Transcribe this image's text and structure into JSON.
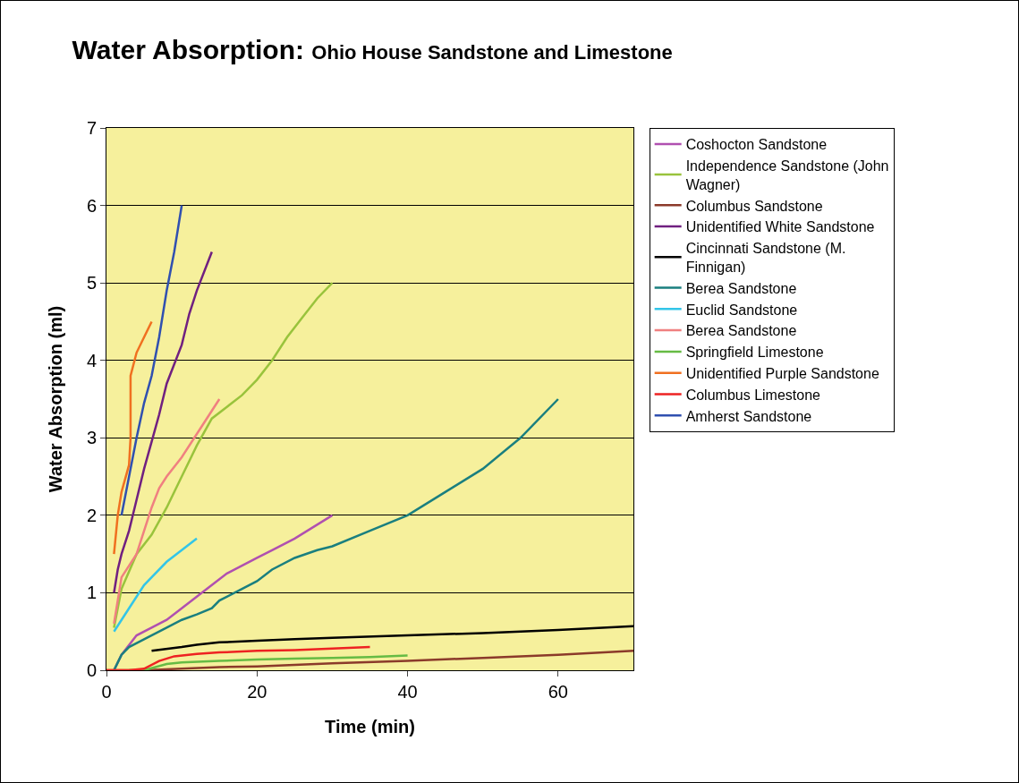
{
  "chart_data": {
    "type": "line",
    "title": "Water Absorption:",
    "subtitle": "Ohio House Sandstone and Limestone",
    "xlabel": "Time (min)",
    "ylabel": "Water Absorption (ml)",
    "xlim": [
      0,
      70
    ],
    "xticks": [
      0,
      20,
      40,
      60
    ],
    "ylim": [
      0,
      7
    ],
    "yticks": [
      0,
      1,
      2,
      3,
      4,
      5,
      6,
      7
    ],
    "grid": "y",
    "legend": "right",
    "marker": "none",
    "line_style": "solid",
    "series": [
      {
        "name": "Coshocton Sandstone",
        "color": "#b050b0",
        "x": [
          1,
          2,
          4,
          6,
          8,
          10,
          12,
          14,
          16,
          18,
          20,
          22,
          25,
          30
        ],
        "values": [
          0,
          0.2,
          0.45,
          0.55,
          0.65,
          0.8,
          0.95,
          1.1,
          1.25,
          1.35,
          1.45,
          1.55,
          1.7,
          2.0
        ]
      },
      {
        "name": "Independence Sandstone (John Wagner)",
        "color": "#99c33c",
        "x": [
          1,
          2,
          4,
          6,
          8,
          10,
          12,
          14,
          16,
          18,
          20,
          22,
          24,
          26,
          28,
          30
        ],
        "values": [
          0.55,
          1.05,
          1.5,
          1.75,
          2.1,
          2.5,
          2.9,
          3.25,
          3.4,
          3.55,
          3.75,
          4.0,
          4.3,
          4.55,
          4.8,
          5.0
        ]
      },
      {
        "name": "Columbus Sandstone",
        "color": "#8b3a2a",
        "x": [
          0,
          5,
          10,
          15,
          20,
          25,
          30,
          40,
          50,
          60,
          70
        ],
        "values": [
          0,
          0,
          0.02,
          0.04,
          0.05,
          0.07,
          0.09,
          0.12,
          0.16,
          0.2,
          0.25
        ]
      },
      {
        "name": "Unidentified White Sandstone",
        "color": "#702080",
        "x": [
          1,
          1.5,
          2,
          3,
          4,
          5,
          6,
          7,
          8,
          10,
          11,
          12,
          14
        ],
        "values": [
          1.0,
          1.3,
          1.5,
          1.8,
          2.2,
          2.6,
          2.95,
          3.3,
          3.7,
          4.2,
          4.6,
          4.9,
          5.4
        ]
      },
      {
        "name": "Cincinnati Sandstone (M. Finnigan)",
        "color": "#000000",
        "x": [
          6,
          10,
          12,
          15,
          20,
          25,
          30,
          40,
          50,
          60,
          70
        ],
        "values": [
          0.25,
          0.3,
          0.33,
          0.36,
          0.38,
          0.4,
          0.42,
          0.45,
          0.48,
          0.52,
          0.57
        ]
      },
      {
        "name": "Berea Sandstone",
        "color": "#1a7f7f",
        "x": [
          1,
          1.5,
          2,
          3,
          5,
          8,
          10,
          12,
          14,
          15,
          18,
          20,
          22,
          25,
          28,
          30,
          35,
          40,
          45,
          50,
          55,
          60
        ],
        "values": [
          0,
          0.1,
          0.2,
          0.3,
          0.4,
          0.55,
          0.65,
          0.72,
          0.8,
          0.9,
          1.05,
          1.15,
          1.3,
          1.45,
          1.55,
          1.6,
          1.8,
          2.0,
          2.3,
          2.6,
          3.0,
          3.5
        ]
      },
      {
        "name": "Euclid Sandstone",
        "color": "#33c5e8",
        "x": [
          1,
          3,
          5,
          6,
          8,
          10,
          12
        ],
        "values": [
          0.5,
          0.8,
          1.1,
          1.2,
          1.4,
          1.55,
          1.7
        ]
      },
      {
        "name": "Berea Sandstone",
        "color": "#f08080",
        "x": [
          1,
          2,
          3,
          4,
          5,
          6,
          7,
          8,
          10,
          12,
          15
        ],
        "values": [
          0.6,
          1.2,
          1.35,
          1.5,
          1.8,
          2.1,
          2.35,
          2.5,
          2.75,
          3.05,
          3.5
        ]
      },
      {
        "name": "Springfield Limestone",
        "color": "#66bb44",
        "x": [
          3,
          5,
          8,
          10,
          15,
          20,
          25,
          30,
          35,
          40
        ],
        "values": [
          0,
          0,
          0.08,
          0.1,
          0.12,
          0.14,
          0.15,
          0.16,
          0.17,
          0.19
        ]
      },
      {
        "name": "Unidentified Purple Sandstone",
        "color": "#f07020",
        "x": [
          1,
          1.5,
          2,
          3,
          3.2,
          3.2,
          4,
          5,
          6
        ],
        "values": [
          1.5,
          2.0,
          2.3,
          2.65,
          3.0,
          3.8,
          4.1,
          4.3,
          4.5
        ]
      },
      {
        "name": "Columbus Limestone",
        "color": "#ee2222",
        "x": [
          0,
          3,
          5,
          7,
          9,
          12,
          15,
          20,
          25,
          30,
          35
        ],
        "values": [
          0,
          0,
          0.02,
          0.12,
          0.18,
          0.21,
          0.23,
          0.25,
          0.26,
          0.28,
          0.3
        ]
      },
      {
        "name": "Amherst Sandstone",
        "color": "#3050b0",
        "x": [
          2,
          3,
          4,
          5,
          6,
          7,
          8,
          9,
          10
        ],
        "values": [
          2.0,
          2.5,
          3.0,
          3.45,
          3.8,
          4.3,
          4.9,
          5.4,
          6.0
        ]
      }
    ]
  }
}
